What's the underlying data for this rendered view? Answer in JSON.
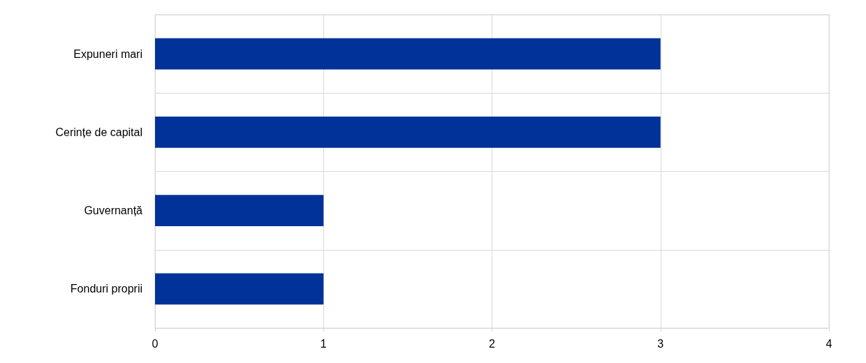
{
  "chart_data": {
    "type": "bar",
    "orientation": "horizontal",
    "categories": [
      "Expuneri mari",
      "Cerințe de capital",
      "Guvernanță",
      "Fonduri proprii"
    ],
    "values": [
      3,
      3,
      1,
      1
    ],
    "color": "#003299",
    "xlim": [
      0,
      4
    ],
    "xticks": [
      0,
      1,
      2,
      3,
      4
    ],
    "grid": true
  }
}
